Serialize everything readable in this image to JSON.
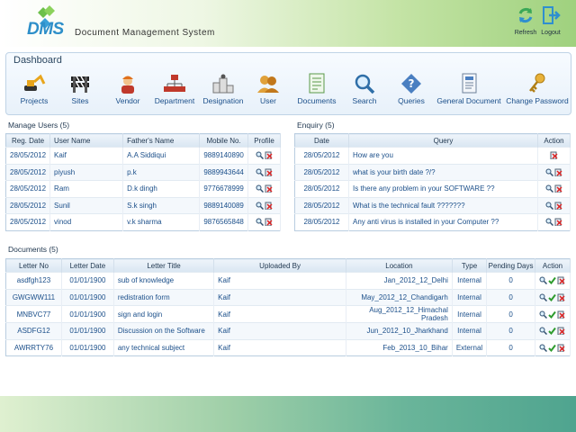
{
  "header": {
    "logo_text": "DMS",
    "title": "Document Management System",
    "refresh_label": "Refresh",
    "logout_label": "Logout"
  },
  "dashboard": {
    "title": "Dashboard",
    "items": [
      {
        "label": "Projects",
        "icon": "excavator-icon"
      },
      {
        "label": "Sites",
        "icon": "barrier-icon"
      },
      {
        "label": "Vendor",
        "icon": "worker-icon"
      },
      {
        "label": "Department",
        "icon": "org-chart-icon"
      },
      {
        "label": "Designation",
        "icon": "podium-icon"
      },
      {
        "label": "User",
        "icon": "users-icon"
      },
      {
        "label": "Documents",
        "icon": "documents-icon"
      },
      {
        "label": "Search",
        "icon": "magnifier-icon"
      },
      {
        "label": "Queries",
        "icon": "question-icon"
      },
      {
        "label": "General Document",
        "icon": "general-document-icon"
      },
      {
        "label": "Change Password",
        "icon": "key-icon"
      }
    ]
  },
  "manage_users": {
    "title": "Manage Users (5)",
    "columns": [
      "Reg. Date",
      "User Name",
      "Father's Name",
      "Mobile No.",
      "Profile"
    ],
    "rows": [
      [
        "28/05/2012",
        "Kaif",
        "A.A Siddiqui",
        "9889140890"
      ],
      [
        "28/05/2012",
        "piyush",
        "p.k",
        "9889943644"
      ],
      [
        "28/05/2012",
        "Ram",
        "D.k dingh",
        "9776678999"
      ],
      [
        "28/05/2012",
        "Sunil",
        "S.k singh",
        "9889140089"
      ],
      [
        "28/05/2012",
        "vinod",
        "v.k sharma",
        "9876565848"
      ]
    ]
  },
  "enquiry": {
    "title": "Enquiry (5)",
    "columns": [
      "Date",
      "Query",
      "Action"
    ],
    "rows": [
      [
        "28/05/2012",
        "How are you"
      ],
      [
        "28/05/2012",
        "what is your birth date ?/?"
      ],
      [
        "28/05/2012",
        "Is there any problem in your SOFTWARE ??"
      ],
      [
        "28/05/2012",
        "What is the technical fault ???????"
      ],
      [
        "28/05/2012",
        "Any anti virus is installed in your Computer ??"
      ]
    ]
  },
  "documents": {
    "title": "Documents (5)",
    "columns": [
      "Letter No",
      "Letter Date",
      "Letter Title",
      "Uploaded By",
      "Location",
      "Type",
      "Pending Days",
      "Action"
    ],
    "rows": [
      [
        "asdfgh123",
        "01/01/1900",
        "sub of knowledge",
        "Kaif",
        "Jan_2012_12_Delhi",
        "Internal",
        "0"
      ],
      [
        "GWGWW111",
        "01/01/1900",
        "redistration form",
        "Kaif",
        "May_2012_12_Chandigarh",
        "Internal",
        "0"
      ],
      [
        "MNBVC77",
        "01/01/1900",
        "sign and login",
        "Kaif",
        "Aug_2012_12_Himachal Pradesh",
        "Internal",
        "0"
      ],
      [
        "ASDFG12",
        "01/01/1900",
        "Discussion on the Software",
        "Kaif",
        "Jun_2012_10_Jharkhand",
        "Internal",
        "0"
      ],
      [
        "AWRRTY76",
        "01/01/1900",
        "any technical subject",
        "Kaif",
        "Feb_2013_10_Bihar",
        "External",
        "0"
      ]
    ]
  },
  "colors": {
    "link": "#1b4f8a",
    "header_green": "#9fd17e",
    "footer_teal": "#4fa48f"
  }
}
